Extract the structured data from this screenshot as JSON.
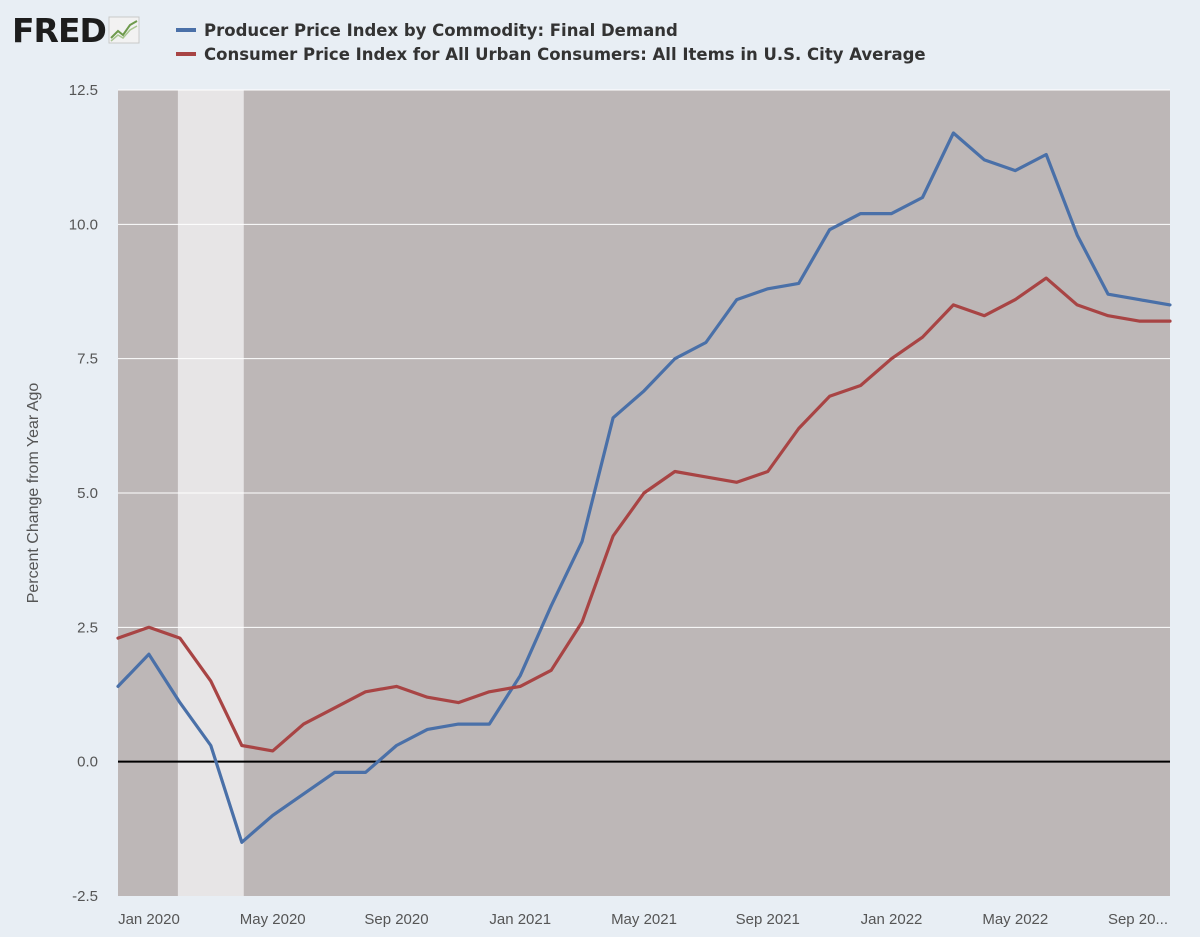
{
  "header": {
    "logo_text": "FRED",
    "logo_icon": "line-chart-icon"
  },
  "colors": {
    "background": "#e8eef4",
    "plot_background": "#bdb7b7",
    "recession_band": "#e7e5e6",
    "gridline": "#ffffff",
    "zero_line": "#000000",
    "ppi": "#4a70a8",
    "cpi": "#a84444"
  },
  "chart_data": {
    "type": "line",
    "ylabel": "Percent Change from Year Ago",
    "ylim": [
      -2.5,
      12.5
    ],
    "yticks": [
      "12.5",
      "10.0",
      "7.5",
      "5.0",
      "2.5",
      "0.0",
      "-2.5"
    ],
    "ytick_values": [
      12.5,
      10.0,
      7.5,
      5.0,
      2.5,
      0.0,
      -2.5
    ],
    "xlim": [
      "2019-12",
      "2022-10"
    ],
    "xticks": [
      "Jan 2020",
      "May 2020",
      "Sep 2020",
      "Jan 2021",
      "May 2021",
      "Sep 2021",
      "Jan 2022",
      "May 2022",
      "Sep 20..."
    ],
    "xtick_dates": [
      "2020-01",
      "2020-05",
      "2020-09",
      "2021-01",
      "2021-05",
      "2021-09",
      "2022-01",
      "2022-05",
      "2022-09"
    ],
    "recession": {
      "start": "2020-02",
      "end": "2020-04"
    },
    "zero_line": true,
    "grid": true,
    "legend_position": "top",
    "x": [
      "2019-12",
      "2020-01",
      "2020-02",
      "2020-03",
      "2020-04",
      "2020-05",
      "2020-06",
      "2020-07",
      "2020-08",
      "2020-09",
      "2020-10",
      "2020-11",
      "2020-12",
      "2021-01",
      "2021-02",
      "2021-03",
      "2021-04",
      "2021-05",
      "2021-06",
      "2021-07",
      "2021-08",
      "2021-09",
      "2021-10",
      "2021-11",
      "2021-12",
      "2022-01",
      "2022-02",
      "2022-03",
      "2022-04",
      "2022-05",
      "2022-06",
      "2022-07",
      "2022-08",
      "2022-09",
      "2022-10"
    ],
    "series": [
      {
        "name": "Producer Price Index by Commodity: Final Demand",
        "color": "#4a70a8",
        "values": [
          1.4,
          2.0,
          1.1,
          0.3,
          -1.5,
          -1.0,
          -0.6,
          -0.2,
          -0.2,
          0.3,
          0.6,
          0.7,
          0.7,
          1.6,
          2.9,
          4.1,
          6.4,
          6.9,
          7.5,
          7.8,
          8.6,
          8.8,
          8.9,
          9.9,
          10.2,
          10.2,
          10.5,
          11.7,
          11.2,
          11.0,
          11.3,
          9.8,
          8.7,
          8.6,
          8.5
        ]
      },
      {
        "name": "Consumer Price Index for All Urban Consumers: All Items in U.S. City Average",
        "color": "#a84444",
        "values": [
          2.3,
          2.5,
          2.3,
          1.5,
          0.3,
          0.2,
          0.7,
          1.0,
          1.3,
          1.4,
          1.2,
          1.1,
          1.3,
          1.4,
          1.7,
          2.6,
          4.2,
          5.0,
          5.4,
          5.3,
          5.2,
          5.4,
          6.2,
          6.8,
          7.0,
          7.5,
          7.9,
          8.5,
          8.3,
          8.6,
          9.0,
          8.5,
          8.3,
          8.2,
          8.2
        ]
      }
    ]
  }
}
